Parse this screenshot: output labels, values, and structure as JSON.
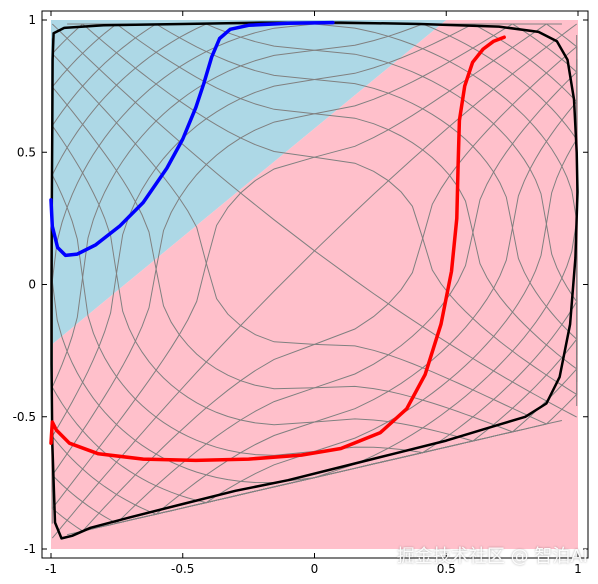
{
  "chart_data": {
    "type": "line",
    "title": "",
    "xlabel": "",
    "ylabel": "",
    "xlim": [
      -1,
      1
    ],
    "ylim": [
      -1,
      1
    ],
    "x_ticks": [
      "-1",
      "-0.5",
      "0",
      "0.5",
      "1"
    ],
    "y_ticks": [
      "-1",
      "-0.5",
      "0",
      "0.5",
      "1"
    ],
    "grid": false,
    "regions": [
      {
        "color": "#add8e6",
        "polygon": [
          [
            -1,
            1
          ],
          [
            0.5,
            1
          ],
          [
            -1,
            -0.23
          ]
        ]
      },
      {
        "color": "#ffc0cb",
        "polygon": [
          [
            0.5,
            1
          ],
          [
            1,
            1
          ],
          [
            1,
            -1
          ],
          [
            -1,
            -1
          ],
          [
            -1,
            -0.23
          ]
        ]
      }
    ],
    "mesh": {
      "color": "#808080",
      "u_lines": [
        -0.9,
        -0.8,
        -0.7,
        -0.6,
        -0.5,
        -0.4,
        -0.3,
        -0.2,
        -0.1,
        0.0,
        0.1,
        0.2,
        0.3,
        0.4,
        0.5,
        0.6,
        0.7,
        0.8,
        0.9
      ],
      "v_lines": [
        -0.9,
        -0.8,
        -0.7,
        -0.6,
        -0.5,
        -0.4,
        -0.3,
        -0.2,
        -0.1,
        0.0,
        0.1,
        0.2,
        0.3,
        0.4,
        0.5,
        0.6,
        0.7,
        0.8,
        0.9
      ]
    },
    "series": [
      {
        "color": "#000000",
        "points": [
          [
            -0.99,
            0.95
          ],
          [
            -0.95,
            0.97
          ],
          [
            -0.8,
            0.98
          ],
          [
            -0.5,
            0.985
          ],
          [
            -0.2,
            0.99
          ],
          [
            0.1,
            0.99
          ],
          [
            0.4,
            0.985
          ],
          [
            0.7,
            0.975
          ],
          [
            0.85,
            0.955
          ],
          [
            0.92,
            0.92
          ],
          [
            0.96,
            0.85
          ],
          [
            0.985,
            0.7
          ],
          [
            0.995,
            0.5
          ],
          [
            0.998,
            0.35
          ],
          [
            0.99,
            0.1
          ],
          [
            0.97,
            -0.15
          ],
          [
            0.93,
            -0.35
          ],
          [
            0.88,
            -0.45
          ],
          [
            0.8,
            -0.5
          ],
          [
            0.7,
            -0.53
          ],
          [
            0.5,
            -0.59
          ],
          [
            0.3,
            -0.64
          ],
          [
            0.1,
            -0.69
          ],
          [
            -0.1,
            -0.74
          ],
          [
            -0.3,
            -0.78
          ],
          [
            -0.5,
            -0.83
          ],
          [
            -0.7,
            -0.88
          ],
          [
            -0.85,
            -0.92
          ],
          [
            -0.92,
            -0.95
          ],
          [
            -0.96,
            -0.96
          ],
          [
            -0.985,
            -0.9
          ],
          [
            -0.995,
            -0.6
          ],
          [
            -0.998,
            -0.3
          ],
          [
            -0.998,
            0
          ],
          [
            -0.997,
            0.3
          ],
          [
            -0.995,
            0.6
          ],
          [
            -0.994,
            0.85
          ],
          [
            -0.99,
            0.95
          ]
        ]
      },
      {
        "color": "#0000ff",
        "points": [
          [
            -1,
            0.32
          ],
          [
            -0.995,
            0.22
          ],
          [
            -0.975,
            0.14
          ],
          [
            -0.945,
            0.11
          ],
          [
            -0.9,
            0.115
          ],
          [
            -0.83,
            0.15
          ],
          [
            -0.74,
            0.22
          ],
          [
            -0.65,
            0.31
          ],
          [
            -0.56,
            0.44
          ],
          [
            -0.5,
            0.55
          ],
          [
            -0.45,
            0.67
          ],
          [
            -0.42,
            0.76
          ],
          [
            -0.39,
            0.86
          ],
          [
            -0.36,
            0.93
          ],
          [
            -0.32,
            0.965
          ],
          [
            -0.25,
            0.98
          ],
          [
            -0.1,
            0.988
          ],
          [
            0.07,
            0.99
          ]
        ]
      },
      {
        "color": "#ff0000",
        "points": [
          [
            -1,
            -0.6
          ],
          [
            -0.995,
            -0.52
          ],
          [
            -0.98,
            -0.55
          ],
          [
            -0.93,
            -0.6
          ],
          [
            -0.82,
            -0.64
          ],
          [
            -0.65,
            -0.66
          ],
          [
            -0.45,
            -0.665
          ],
          [
            -0.25,
            -0.66
          ],
          [
            -0.05,
            -0.645
          ],
          [
            0.1,
            -0.62
          ],
          [
            0.25,
            -0.56
          ],
          [
            0.35,
            -0.47
          ],
          [
            0.42,
            -0.34
          ],
          [
            0.48,
            -0.15
          ],
          [
            0.52,
            0.05
          ],
          [
            0.54,
            0.25
          ],
          [
            0.545,
            0.45
          ],
          [
            0.55,
            0.62
          ],
          [
            0.57,
            0.75
          ],
          [
            0.6,
            0.84
          ],
          [
            0.64,
            0.89
          ],
          [
            0.68,
            0.92
          ],
          [
            0.72,
            0.935
          ]
        ]
      }
    ]
  },
  "watermark": "掘金技术社区 @ 智泊AI"
}
